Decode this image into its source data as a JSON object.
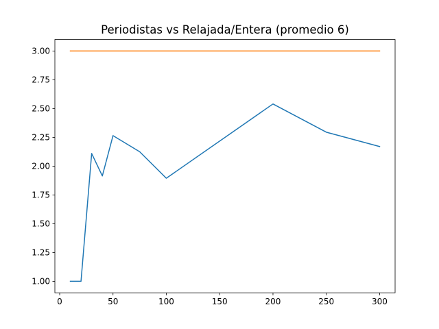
{
  "chart_data": {
    "type": "line",
    "title": "Periodistas vs Relajada/Entera (promedio 6)",
    "xlabel": "",
    "ylabel": "",
    "xlim": [
      -4.5,
      314.5
    ],
    "ylim": [
      0.9,
      3.1
    ],
    "x_ticks": [
      0,
      50,
      100,
      150,
      200,
      250,
      300
    ],
    "y_ticks": [
      1.0,
      1.25,
      1.5,
      1.75,
      2.0,
      2.25,
      2.5,
      2.75,
      3.0
    ],
    "grid": false,
    "legend": "none",
    "series": [
      {
        "color": "#1f77b4",
        "x": [
          10,
          20,
          30,
          40,
          50,
          75,
          100,
          200,
          250,
          300
        ],
        "y": [
          1.0,
          1.0,
          2.11,
          1.915,
          2.265,
          2.125,
          1.895,
          2.54,
          2.295,
          2.17
        ]
      },
      {
        "color": "#ff7f0e",
        "x": [
          10,
          20,
          30,
          40,
          50,
          75,
          100,
          200,
          250,
          300
        ],
        "y": [
          3.0,
          3.0,
          3.0,
          3.0,
          3.0,
          3.0,
          3.0,
          3.0,
          3.0,
          3.0
        ]
      }
    ]
  }
}
